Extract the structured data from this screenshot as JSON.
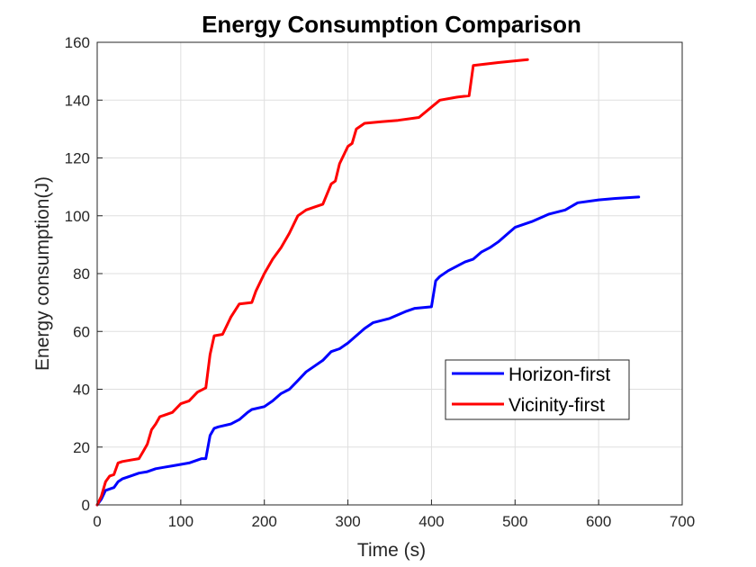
{
  "chart_data": {
    "type": "line",
    "title": "Energy Consumption Comparison",
    "xlabel": "Time (s)",
    "ylabel": "Energy consumption(J)",
    "xlim": [
      0,
      700
    ],
    "ylim": [
      0,
      160
    ],
    "xticks": [
      0,
      100,
      200,
      300,
      400,
      500,
      600,
      700
    ],
    "yticks": [
      0,
      20,
      40,
      60,
      80,
      100,
      120,
      140,
      160
    ],
    "grid": true,
    "legend_position": "lower-right",
    "series": [
      {
        "name": "Horizon-first",
        "color": "#0000ff",
        "x": [
          0,
          5,
          10,
          20,
          25,
          30,
          40,
          50,
          60,
          70,
          80,
          90,
          100,
          110,
          120,
          125,
          130,
          135,
          140,
          145,
          160,
          170,
          180,
          185,
          200,
          210,
          220,
          230,
          240,
          250,
          260,
          270,
          280,
          290,
          300,
          320,
          330,
          350,
          370,
          380,
          400,
          405,
          410,
          420,
          440,
          450,
          460,
          470,
          480,
          490,
          500,
          520,
          540,
          560,
          575,
          600,
          620,
          648
        ],
        "y": [
          0,
          2,
          5,
          6,
          8,
          9,
          10,
          11,
          11.5,
          12.5,
          13,
          13.5,
          14,
          14.5,
          15.5,
          16,
          16,
          24,
          26.5,
          27,
          28,
          29.5,
          32,
          33,
          34,
          36,
          38.5,
          40,
          43,
          46,
          48,
          50,
          53,
          54,
          56,
          61,
          63,
          64.5,
          67,
          68,
          68.5,
          77.5,
          79,
          81,
          84,
          85,
          87.5,
          89,
          91,
          93.5,
          96,
          98,
          100.5,
          102,
          104.5,
          105.5,
          106,
          106.5
        ]
      },
      {
        "name": "Vicinity-first",
        "color": "#ff0000",
        "x": [
          0,
          5,
          10,
          15,
          20,
          25,
          30,
          40,
          50,
          55,
          60,
          65,
          70,
          75,
          80,
          90,
          100,
          110,
          120,
          130,
          135,
          140,
          150,
          160,
          170,
          185,
          190,
          200,
          210,
          220,
          230,
          240,
          250,
          260,
          270,
          280,
          285,
          290,
          300,
          305,
          310,
          320,
          340,
          360,
          385,
          410,
          430,
          445,
          450,
          480,
          515
        ],
        "y": [
          0,
          3,
          8,
          10,
          10.5,
          14.5,
          15,
          15.5,
          16,
          18.5,
          21,
          26,
          28,
          30.5,
          31,
          32,
          35,
          36,
          39,
          40.5,
          52,
          58.5,
          59,
          65,
          69.5,
          70,
          74,
          80,
          85,
          89,
          94,
          100,
          102,
          103,
          104,
          111,
          112,
          118,
          124,
          125,
          130,
          132,
          132.5,
          133,
          134,
          140,
          141,
          141.5,
          152,
          153,
          154
        ]
      }
    ]
  }
}
